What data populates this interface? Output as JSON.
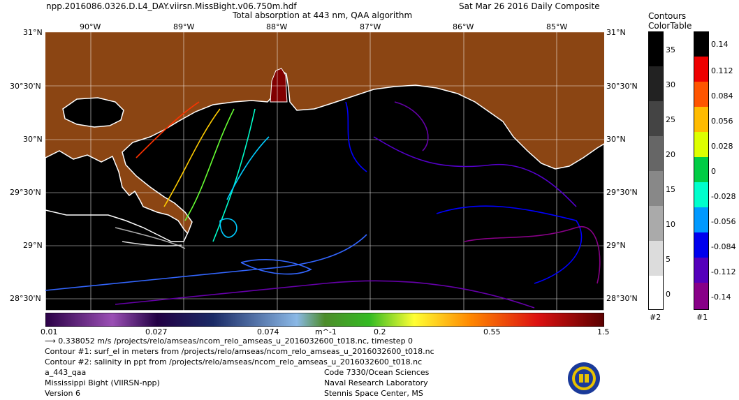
{
  "header": {
    "file_name": "npp.2016086.0326.D.L4_DAY.viirsn.MissBight.v06.750m.hdf",
    "product_title": "Total absorption at 443 nm, QAA algorithm",
    "date_label": "Sat Mar 26 2016 Daily Composite"
  },
  "map": {
    "lon_labels": [
      "90°W",
      "89°W",
      "88°W",
      "87°W",
      "86°W",
      "85°W"
    ],
    "lat_labels": [
      "31°N",
      "30°30'N",
      "30°N",
      "29°30'N",
      "29°N",
      "28°30'N"
    ],
    "colors": {
      "land": "#8B4513",
      "water": "#000000",
      "coastline": "#ffffff"
    }
  },
  "colorbar": {
    "tick_labels": [
      "0.01",
      "0.027",
      "0.074",
      "0.2",
      "0.55",
      "1.5"
    ],
    "unit": "m^-1"
  },
  "contour_legends": {
    "title_line1": "Contours",
    "title_line2": "ColorTable",
    "salinity": {
      "ticks": [
        "35",
        "30",
        "25",
        "20",
        "15",
        "10",
        "5",
        "0"
      ],
      "footer": "#2"
    },
    "surface_elevation": {
      "ticks": [
        "0.14",
        "0.112",
        "0.084",
        "0.056",
        "0.028",
        "0",
        "-0.028",
        "-0.056",
        "-0.084",
        "-0.112",
        "-0.14"
      ],
      "footer": "#1"
    }
  },
  "notes": {
    "vector": "0.338052 m/s /projects/relo/amseas/ncom_relo_amseas_u_2016032600_t018.nc, timestep 0",
    "contour1": "Contour #1: surf_el in meters from /projects/relo/amseas/ncom_relo_amseas_u_2016032600_t018.nc",
    "contour2": "Contour #2: salinity in ppt from /projects/relo/amseas/ncom_relo_amseas_u_2016032600_t018.nc",
    "product_code": "a_443_qaa",
    "region": "Mississippi Bight (VIIRSN-npp)",
    "version": "Version 6"
  },
  "credits": {
    "line1": "Code 7330/Ocean Sciences",
    "line2": "Naval Research Laboratory",
    "line3": "Stennis Space Center, MS"
  }
}
